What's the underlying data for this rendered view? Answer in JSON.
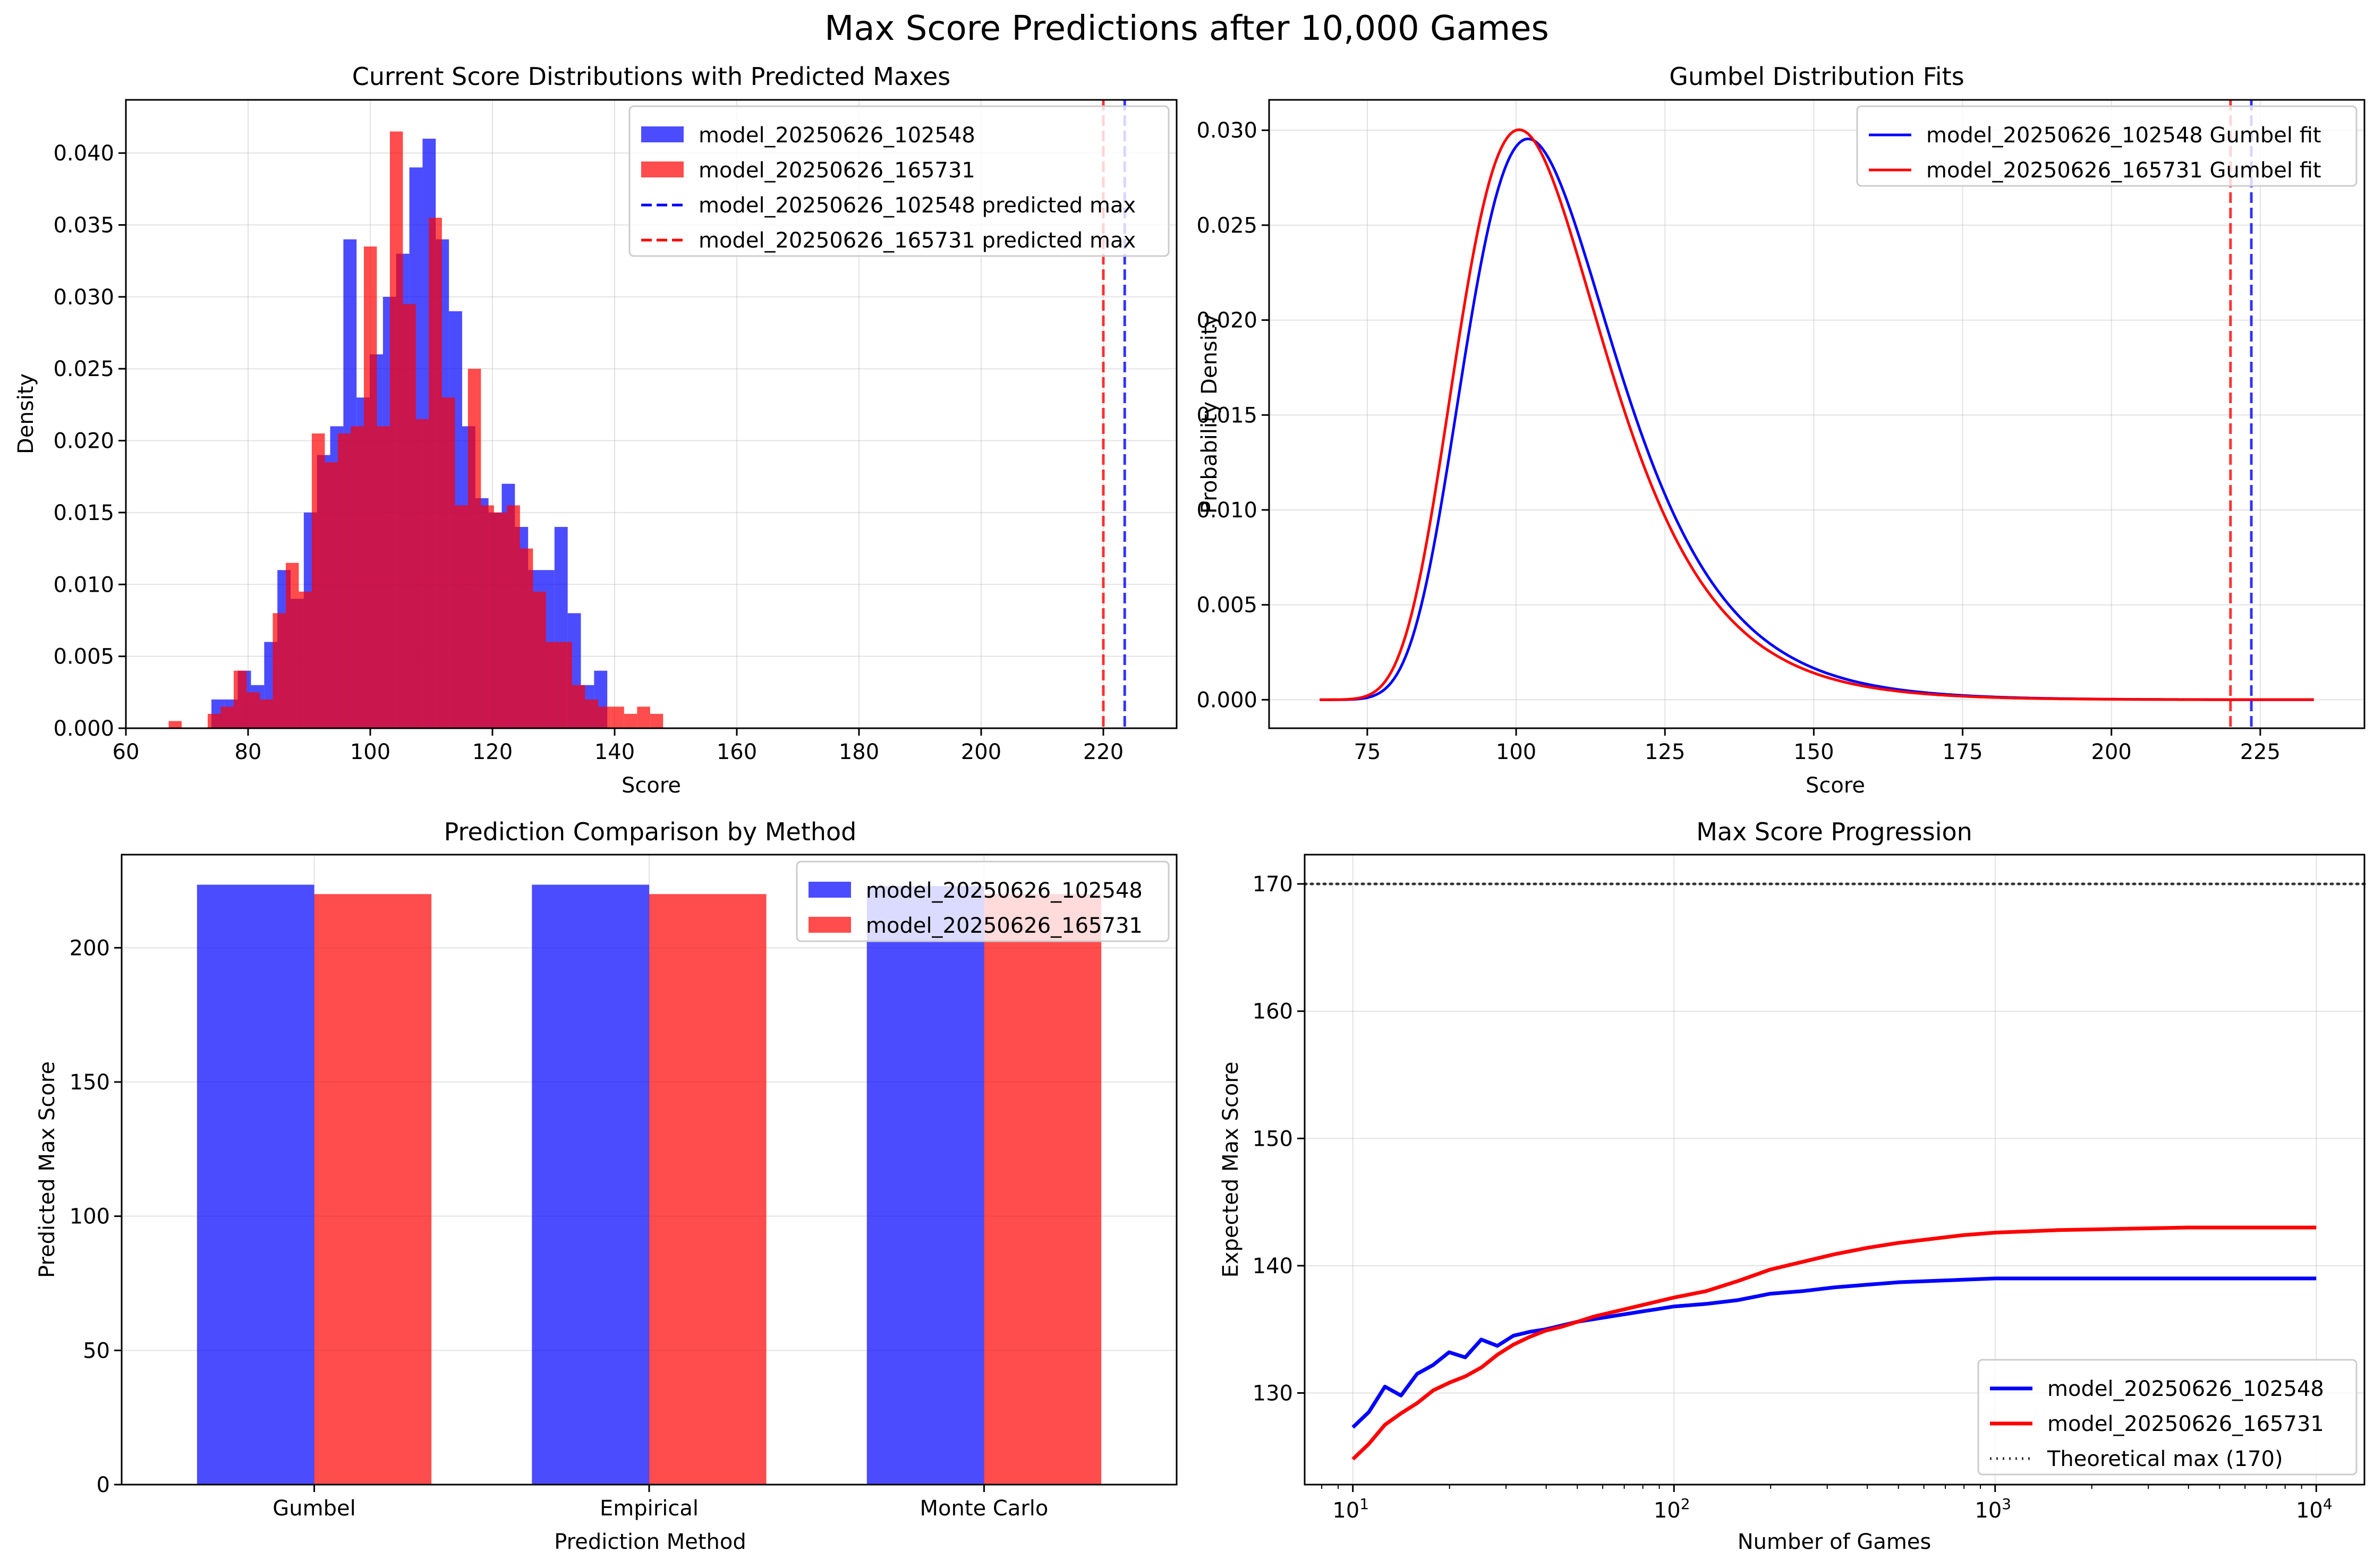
{
  "suptitle": "Max Score Predictions after 10,000 Games",
  "colors": {
    "blue": "#0000ff",
    "red": "#ff0000",
    "dark": "#333333",
    "grid": "#b0b0b0"
  },
  "chart_data": [
    {
      "id": "hist",
      "type": "bar",
      "title": "Current Score Distributions with Predicted Maxes",
      "xlabel": "Score",
      "ylabel": "Density",
      "xlim": [
        60,
        232
      ],
      "ylim": [
        0,
        0.0437
      ],
      "xticks": [
        60,
        80,
        100,
        120,
        140,
        160,
        180,
        200,
        220
      ],
      "yticks": [
        0.0,
        0.005,
        0.01,
        0.015,
        0.02,
        0.025,
        0.03,
        0.035,
        0.04
      ],
      "ytick_labels": [
        "0.000",
        "0.005",
        "0.010",
        "0.015",
        "0.020",
        "0.025",
        "0.030",
        "0.035",
        "0.040"
      ],
      "grid": true,
      "legend_position": "upper right",
      "series": [
        {
          "name": "model_20250626_102548",
          "color": "blue",
          "bin_start": 74,
          "bin_width": 2.16,
          "values": [
            0.002,
            0.002,
            0.004,
            0.003,
            0.006,
            0.011,
            0.009,
            0.015,
            0.019,
            0.021,
            0.034,
            0.023,
            0.026,
            0.03,
            0.033,
            0.039,
            0.041,
            0.034,
            0.029,
            0.021,
            0.016,
            0.015,
            0.017,
            0.014,
            0.011,
            0.011,
            0.014,
            0.008,
            0.003,
            0.004,
            0.0
          ]
        },
        {
          "name": "model_20250626_165731",
          "color": "red",
          "bin_start": 67,
          "bin_width": 2.13,
          "values": [
            0.0005,
            0.0,
            0.0,
            0.001,
            0.0015,
            0.004,
            0.0025,
            0.002,
            0.008,
            0.0115,
            0.0095,
            0.0205,
            0.0185,
            0.0205,
            0.021,
            0.0335,
            0.021,
            0.0415,
            0.0295,
            0.0215,
            0.0355,
            0.023,
            0.0155,
            0.025,
            0.0155,
            0.015,
            0.0155,
            0.0125,
            0.0095,
            0.006,
            0.006,
            0.003,
            0.002,
            0.0015,
            0.0015,
            0.001,
            0.0015,
            0.001
          ]
        }
      ],
      "vlines": [
        {
          "name": "model_20250626_102548 predicted max",
          "x": 223.5,
          "color": "blue"
        },
        {
          "name": "model_20250626_165731 predicted max",
          "x": 220.0,
          "color": "red"
        }
      ]
    },
    {
      "id": "gumbel",
      "type": "line",
      "title": "Gumbel Distribution Fits",
      "xlabel": "Score",
      "ylabel": "Probability Density",
      "xlim": [
        58.5,
        242.5
      ],
      "ylim": [
        -0.0015,
        0.0316
      ],
      "xticks": [
        75,
        100,
        125,
        150,
        175,
        200,
        225
      ],
      "yticks": [
        0.0,
        0.005,
        0.01,
        0.015,
        0.02,
        0.025,
        0.03
      ],
      "ytick_labels": [
        "0.000",
        "0.005",
        "0.010",
        "0.015",
        "0.020",
        "0.025",
        "0.030"
      ],
      "x_range": [
        67,
        234
      ],
      "grid": true,
      "legend_position": "upper right",
      "series": [
        {
          "name": "model_20250626_102548 Gumbel fit",
          "color": "blue",
          "mu": 102.0,
          "beta": 12.45
        },
        {
          "name": "model_20250626_165731 Gumbel fit",
          "color": "red",
          "mu": 100.5,
          "beta": 12.25
        }
      ],
      "vlines": [
        {
          "x": 223.5,
          "color": "blue"
        },
        {
          "x": 220.0,
          "color": "red"
        }
      ]
    },
    {
      "id": "bars",
      "type": "bar",
      "title": "Prediction Comparison by Method",
      "xlabel": "Prediction Method",
      "ylabel": "Predicted Max Score",
      "ylim": [
        0,
        234.7
      ],
      "yticks": [
        0,
        50,
        100,
        150,
        200
      ],
      "categories": [
        "Gumbel",
        "Empirical",
        "Monte Carlo"
      ],
      "grid": true,
      "legend_position": "upper right",
      "series": [
        {
          "name": "model_20250626_102548",
          "color": "blue",
          "values": [
            223.5,
            223.5,
            223.0
          ]
        },
        {
          "name": "model_20250626_165731",
          "color": "red",
          "values": [
            220.0,
            220.0,
            220.0
          ]
        }
      ]
    },
    {
      "id": "progression",
      "type": "line",
      "title": "Max Score Progression",
      "xlabel": "Number of Games",
      "ylabel": "Expected Max Score",
      "xscale": "log",
      "xlim_log10": [
        0.85,
        4.15
      ],
      "ylim": [
        122.8,
        172.3
      ],
      "yticks": [
        130,
        140,
        150,
        160,
        170
      ],
      "xtick_labels": [
        {
          "base": "10",
          "exp": "1",
          "log": 1
        },
        {
          "base": "10",
          "exp": "2",
          "log": 2
        },
        {
          "base": "10",
          "exp": "3",
          "log": 3
        },
        {
          "base": "10",
          "exp": "4",
          "log": 4
        }
      ],
      "grid": true,
      "legend_position": "lower right",
      "hline": {
        "name": "Theoretical max (170)",
        "y": 170,
        "color": "dark"
      },
      "series": [
        {
          "name": "model_20250626_102548",
          "color": "blue",
          "logx": [
            1.0,
            1.05,
            1.1,
            1.15,
            1.2,
            1.25,
            1.3,
            1.35,
            1.4,
            1.45,
            1.5,
            1.55,
            1.6,
            1.65,
            1.7,
            1.75,
            1.8,
            1.85,
            1.9,
            1.95,
            2.0,
            2.1,
            2.2,
            2.3,
            2.4,
            2.5,
            2.6,
            2.7,
            2.8,
            2.9,
            3.0,
            3.2,
            3.4,
            3.6,
            3.8,
            4.0
          ],
          "values": [
            127.3,
            128.5,
            130.5,
            129.8,
            131.5,
            132.2,
            133.2,
            132.8,
            134.2,
            133.7,
            134.5,
            134.8,
            135.0,
            135.3,
            135.6,
            135.8,
            136.0,
            136.2,
            136.4,
            136.6,
            136.8,
            137.0,
            137.3,
            137.8,
            138.0,
            138.3,
            138.5,
            138.7,
            138.8,
            138.9,
            139.0,
            139.0,
            139.0,
            139.0,
            139.0,
            139.0
          ]
        },
        {
          "name": "model_20250626_165731",
          "color": "red",
          "logx": [
            1.0,
            1.05,
            1.1,
            1.15,
            1.2,
            1.25,
            1.3,
            1.35,
            1.4,
            1.45,
            1.5,
            1.55,
            1.6,
            1.65,
            1.7,
            1.75,
            1.8,
            1.85,
            1.9,
            1.95,
            2.0,
            2.1,
            2.2,
            2.3,
            2.4,
            2.5,
            2.6,
            2.7,
            2.8,
            2.9,
            3.0,
            3.2,
            3.4,
            3.6,
            3.8,
            4.0
          ],
          "values": [
            124.8,
            126.0,
            127.5,
            128.4,
            129.2,
            130.2,
            130.8,
            131.3,
            132.0,
            133.0,
            133.8,
            134.4,
            134.9,
            135.2,
            135.6,
            136.0,
            136.3,
            136.6,
            136.9,
            137.2,
            137.5,
            138.0,
            138.8,
            139.7,
            140.3,
            140.9,
            141.4,
            141.8,
            142.1,
            142.4,
            142.6,
            142.8,
            142.9,
            143.0,
            143.0,
            143.0
          ]
        }
      ]
    }
  ]
}
